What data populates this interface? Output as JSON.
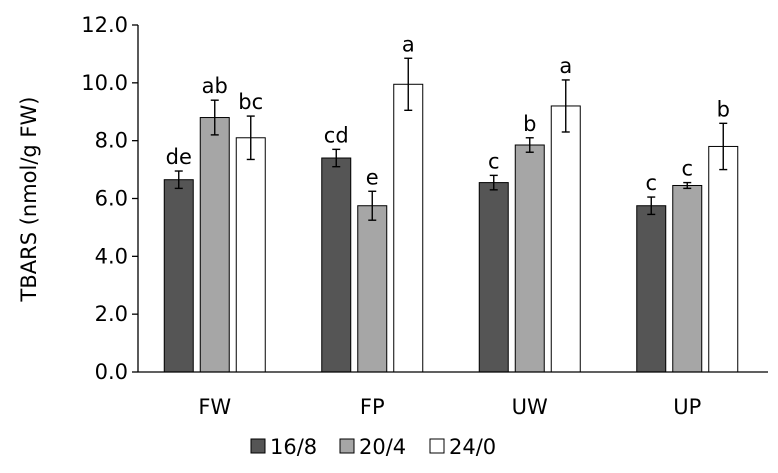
{
  "chart_data": {
    "type": "bar",
    "title": "",
    "xlabel": "",
    "ylabel": "TBARS (nmol/g FW)",
    "ylim": [
      0,
      12
    ],
    "yticks": [
      "0.0",
      "2.0",
      "4.0",
      "6.0",
      "8.0",
      "10.0",
      "12.0"
    ],
    "grid": false,
    "legend_position": "bottom",
    "categories": [
      "FW",
      "FP",
      "UW",
      "UP"
    ],
    "series": [
      {
        "name": "16/8",
        "color": "#555555",
        "values": [
          6.65,
          7.4,
          6.55,
          5.75
        ],
        "errors": [
          0.3,
          0.3,
          0.25,
          0.3
        ],
        "labels": [
          "de",
          "cd",
          "c",
          "c"
        ]
      },
      {
        "name": "20/4",
        "color": "#a6a6a6",
        "values": [
          8.8,
          5.75,
          7.85,
          6.45
        ],
        "errors": [
          0.6,
          0.5,
          0.25,
          0.1
        ],
        "labels": [
          "ab",
          "e",
          "b",
          "c"
        ]
      },
      {
        "name": "24/0",
        "color": "#ffffff",
        "values": [
          8.1,
          9.95,
          9.2,
          7.8
        ],
        "errors": [
          0.75,
          0.9,
          0.9,
          0.8
        ],
        "labels": [
          "bc",
          "a",
          "a",
          "b"
        ]
      }
    ]
  }
}
